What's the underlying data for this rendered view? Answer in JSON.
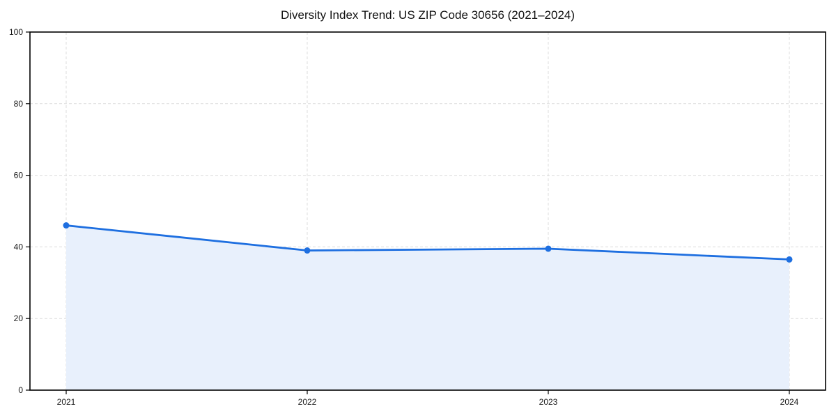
{
  "figure": {
    "title": "Diversity Index Trend: US ZIP Code 30656 (2021–2024)"
  },
  "chart_data": {
    "type": "line",
    "title": "Diversity Index Trend: US ZIP Code 30656 (2021–2024)",
    "x": [
      "2021",
      "2022",
      "2023",
      "2024"
    ],
    "series": [
      {
        "name": "Diversity Index",
        "values": [
          46.0,
          39.0,
          39.5,
          36.5
        ]
      }
    ],
    "xlabel": "",
    "ylabel": "",
    "ylim": [
      0,
      100
    ],
    "yticks": [
      0,
      20,
      40,
      60,
      80,
      100
    ],
    "grid": true,
    "grid_style": "dashed",
    "legend_position": "none",
    "area_fill": true,
    "marker": "circle",
    "colors": {
      "line": "#1e6fe0",
      "marker": "#1e6fe0",
      "fill": "#e8f0fc",
      "grid": "#dcdcdc",
      "axis": "#000000",
      "tick_label": "#1a1a1a",
      "title": "#111111",
      "background": "#ffffff"
    }
  }
}
